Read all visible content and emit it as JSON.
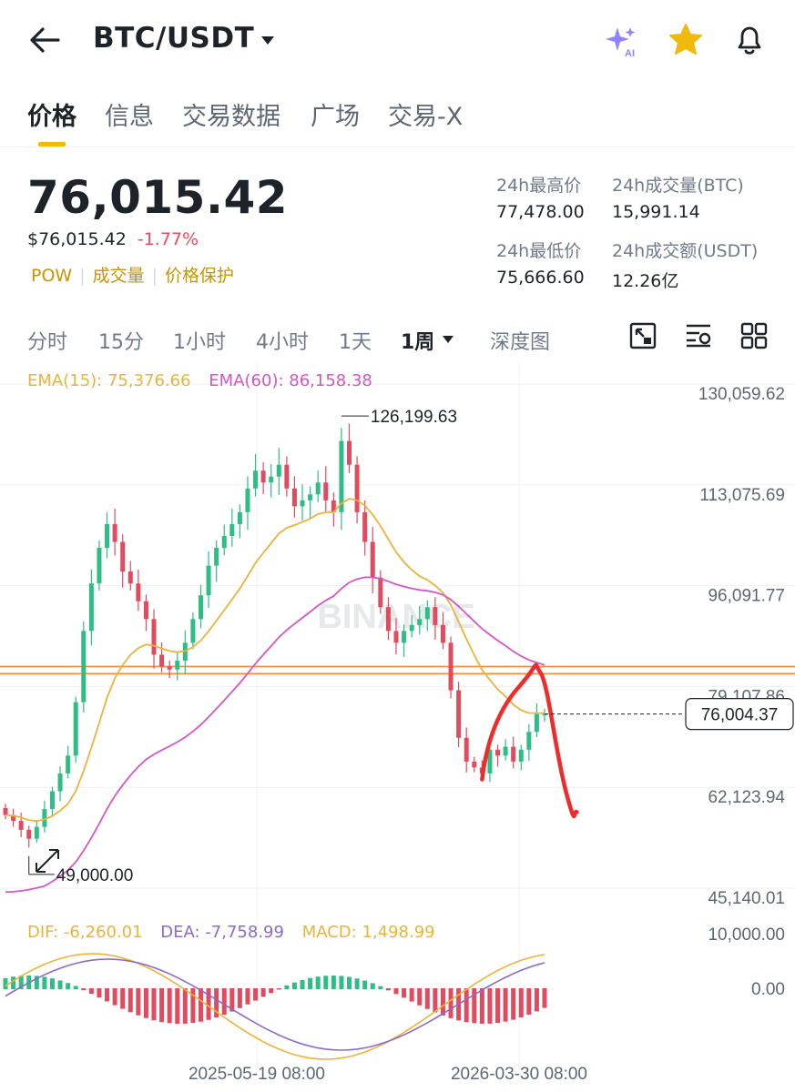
{
  "header": {
    "pair": "BTC/USDT",
    "icons": [
      "back-arrow-icon",
      "caret-down-icon",
      "ai-sparkle-icon",
      "favorite-star-icon",
      "bell-icon"
    ]
  },
  "tabs": [
    "价格",
    "信息",
    "交易数据",
    "广场",
    "交易-X"
  ],
  "price": {
    "last": "76,015.42",
    "usd": "$76,015.42",
    "change": "-1.77%",
    "tags": [
      "POW",
      "成交量",
      "价格保护"
    ]
  },
  "stats": {
    "high_label": "24h最高价",
    "high": "77,478.00",
    "vol_btc_label": "24h成交量(BTC)",
    "vol_btc": "15,991.14",
    "low_label": "24h最低价",
    "low": "75,666.60",
    "vol_usdt_label": "24h成交额(USDT)",
    "vol_usdt": "12.26亿"
  },
  "intervals": {
    "items": [
      "分时",
      "15分",
      "1小时",
      "4小时",
      "1天",
      "1周",
      "深度图"
    ],
    "active": "1周",
    "tools": [
      "expand-icon",
      "indicator-settings-icon",
      "layout-grid-icon"
    ]
  },
  "legend": {
    "ema15": "EMA(15): 75,376.66",
    "ema60": "EMA(60): 86,158.38",
    "dif": "DIF: -6,260.01",
    "dea": "DEA: -7,758.99",
    "macd": "MACD: 1,498.99"
  },
  "colors": {
    "up": "#2ebd85",
    "down": "#e24a5e",
    "ema15": "#e9b43b",
    "ema60": "#d357c6",
    "dea": "#8c6bc8",
    "brand": "#f0b90b",
    "drawing": "#ef2b2b",
    "hline": "#f08a3c"
  },
  "chart_data": {
    "type": "candlestick",
    "interval": "1周",
    "watermark": "BINANCE",
    "y_axis_ticks": [
      "130,059.62",
      "113,075.69",
      "96,091.77",
      "79,107.86",
      "62,123.94",
      "45,140.01"
    ],
    "macd_axis_ticks": [
      "10,000.00",
      "0.00"
    ],
    "x_axis_ticks": [
      "2025-05-19 08:00",
      "2026-03-30 08:00"
    ],
    "high_marker": "126,199.63",
    "low_marker": "49,000.00",
    "current_price": "76,004.37",
    "ylim": [
      45140.01,
      130059.62
    ],
    "horizontal_lines": [
      84000,
      82800
    ],
    "weekly_close_outline": [
      59000,
      58000,
      56500,
      55000,
      57000,
      60000,
      63000,
      66000,
      69000,
      78000,
      90000,
      98000,
      104000,
      108000,
      105000,
      100000,
      98000,
      95000,
      92000,
      86000,
      84000,
      83500,
      85000,
      88000,
      92000,
      96000,
      101000,
      104000,
      106000,
      108000,
      110000,
      114000,
      117000,
      115000,
      116000,
      118000,
      114000,
      111000,
      112000,
      113000,
      115000,
      112000,
      110000,
      122000,
      118000,
      110000,
      105000,
      99000,
      94000,
      90000,
      88000,
      90000,
      91000,
      92000,
      94000,
      91000,
      88000,
      80000,
      72000,
      68000,
      67000,
      66000,
      70000,
      69000,
      70500,
      68000,
      70000,
      73000,
      76000,
      76004
    ]
  }
}
